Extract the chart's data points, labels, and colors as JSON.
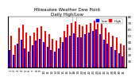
{
  "title": "Milwaukee Weather Dew Point",
  "subtitle": "Daily High/Low",
  "background_color": "#ffffff",
  "bar_width": 0.42,
  "days": [
    1,
    2,
    3,
    4,
    5,
    6,
    7,
    8,
    9,
    10,
    11,
    12,
    13,
    14,
    15,
    16,
    17,
    18,
    19,
    20,
    21,
    22,
    23,
    24,
    25,
    26,
    27,
    28,
    29,
    30,
    31
  ],
  "high": [
    50,
    35,
    62,
    68,
    55,
    50,
    55,
    62,
    65,
    58,
    52,
    45,
    42,
    48,
    58,
    68,
    70,
    72,
    68,
    65,
    68,
    70,
    74,
    76,
    70,
    62,
    55,
    50,
    48,
    38,
    35
  ],
  "low": [
    28,
    20,
    38,
    44,
    30,
    25,
    35,
    42,
    45,
    40,
    32,
    28,
    25,
    30,
    40,
    48,
    50,
    54,
    48,
    48,
    52,
    55,
    58,
    60,
    52,
    44,
    38,
    32,
    28,
    22,
    18
  ],
  "high_color": "#ff0000",
  "low_color": "#0000ff",
  "ylim": [
    0,
    80
  ],
  "yticks": [
    10,
    20,
    30,
    40,
    50,
    60,
    70,
    80
  ],
  "grid_color": "#cccccc",
  "title_fontsize": 4.0,
  "tick_fontsize": 2.8,
  "legend_fontsize": 3.0
}
